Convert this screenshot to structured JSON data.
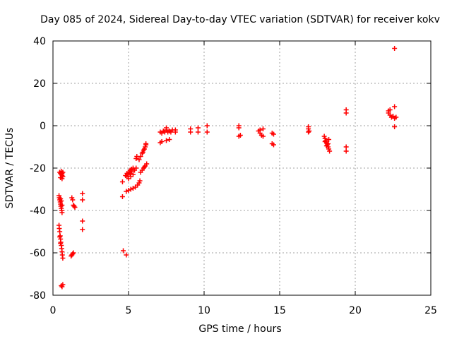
{
  "chart_data": {
    "type": "scatter",
    "title": "Day 085 of 2024, Sidereal Day-to-day VTEC variation (SDTVAR) for receiver kokv",
    "xlabel": "GPS time / hours",
    "ylabel": "SDTVAR / TECUs",
    "xlim": [
      0,
      25
    ],
    "ylim": [
      -80,
      40
    ],
    "xticks": [
      0,
      5,
      10,
      15,
      20,
      25
    ],
    "yticks": [
      -80,
      -60,
      -40,
      -20,
      0,
      20,
      40
    ],
    "xtick_labels": [
      "0",
      "5",
      "10",
      "15",
      "20",
      "25"
    ],
    "ytick_labels": [
      "-80",
      "-60",
      "-40",
      "-20",
      "0",
      "20",
      "40"
    ],
    "grid": true,
    "marker": "+",
    "marker_color": "#ff0000",
    "grid_color": "#a0a0a0",
    "series": [
      {
        "name": "SDTVAR",
        "points": [
          [
            0.45,
            -22.0
          ],
          [
            0.5,
            -22.5
          ],
          [
            0.55,
            -23.0
          ],
          [
            0.6,
            -22.5
          ],
          [
            0.6,
            -23.5
          ],
          [
            0.65,
            -24.0
          ],
          [
            0.5,
            -24.5
          ],
          [
            0.55,
            -21.5
          ],
          [
            0.6,
            -25.0
          ],
          [
            0.65,
            -22.0
          ],
          [
            0.4,
            -33.0
          ],
          [
            0.42,
            -34.0
          ],
          [
            0.45,
            -35.0
          ],
          [
            0.48,
            -36.0
          ],
          [
            0.5,
            -37.0
          ],
          [
            0.52,
            -38.0
          ],
          [
            0.55,
            -39.0
          ],
          [
            0.58,
            -40.0
          ],
          [
            0.6,
            -41.0
          ],
          [
            0.5,
            -34.5
          ],
          [
            0.55,
            -35.5
          ],
          [
            0.6,
            -37.5
          ],
          [
            0.4,
            -47.0
          ],
          [
            0.42,
            -48.5
          ],
          [
            0.45,
            -50.0
          ],
          [
            0.48,
            -52.0
          ],
          [
            0.5,
            -53.5
          ],
          [
            0.52,
            -55.0
          ],
          [
            0.55,
            -56.5
          ],
          [
            0.58,
            -58.0
          ],
          [
            0.6,
            -59.5
          ],
          [
            0.62,
            -61.0
          ],
          [
            0.65,
            -62.5
          ],
          [
            0.45,
            -52.5
          ],
          [
            0.5,
            -55.5
          ],
          [
            0.55,
            -75.5
          ],
          [
            0.6,
            -76.0
          ],
          [
            0.65,
            -75.0
          ],
          [
            1.25,
            -34.0
          ],
          [
            1.3,
            -35.0
          ],
          [
            1.35,
            -37.5
          ],
          [
            1.4,
            -38.0
          ],
          [
            1.45,
            -38.5
          ],
          [
            1.2,
            -61.5
          ],
          [
            1.25,
            -61.0
          ],
          [
            1.3,
            -60.5
          ],
          [
            1.35,
            -60.0
          ],
          [
            1.95,
            -32.0
          ],
          [
            1.95,
            -35.0
          ],
          [
            1.95,
            -45.0
          ],
          [
            1.95,
            -49.0
          ],
          [
            4.6,
            -26.5
          ],
          [
            4.6,
            -33.5
          ],
          [
            4.65,
            -59.0
          ],
          [
            4.85,
            -61.0
          ],
          [
            4.8,
            -23.5
          ],
          [
            4.9,
            -22.5
          ],
          [
            5.0,
            -22.0
          ],
          [
            5.1,
            -21.0
          ],
          [
            5.2,
            -20.5
          ],
          [
            5.3,
            -20.0
          ],
          [
            4.9,
            -24.0
          ],
          [
            5.0,
            -23.0
          ],
          [
            5.1,
            -22.5
          ],
          [
            5.2,
            -21.5
          ],
          [
            5.4,
            -21.0
          ],
          [
            5.5,
            -20.0
          ],
          [
            5.0,
            -25.0
          ],
          [
            5.15,
            -24.0
          ],
          [
            5.3,
            -23.0
          ],
          [
            4.85,
            -31.0
          ],
          [
            5.0,
            -30.5
          ],
          [
            5.15,
            -30.0
          ],
          [
            5.3,
            -29.5
          ],
          [
            5.45,
            -29.0
          ],
          [
            5.6,
            -28.0
          ],
          [
            5.7,
            -27.0
          ],
          [
            5.75,
            -26.0
          ],
          [
            5.5,
            -15.5
          ],
          [
            5.55,
            -14.5
          ],
          [
            5.7,
            -16.0
          ],
          [
            5.8,
            -14.5
          ],
          [
            5.9,
            -13.0
          ],
          [
            6.0,
            -11.5
          ],
          [
            6.1,
            -10.0
          ],
          [
            6.15,
            -9.0
          ],
          [
            5.95,
            -12.5
          ],
          [
            6.05,
            -11.0
          ],
          [
            6.15,
            -8.5
          ],
          [
            5.8,
            -22.0
          ],
          [
            5.9,
            -21.0
          ],
          [
            6.0,
            -20.0
          ],
          [
            6.1,
            -19.0
          ],
          [
            6.2,
            -18.0
          ],
          [
            6.05,
            -19.5
          ],
          [
            7.1,
            -3.0
          ],
          [
            7.2,
            -3.5
          ],
          [
            7.3,
            -2.5
          ],
          [
            7.4,
            -3.0
          ],
          [
            7.5,
            -1.0
          ],
          [
            7.5,
            -2.0
          ],
          [
            7.6,
            -3.0
          ],
          [
            7.7,
            -2.5
          ],
          [
            7.8,
            -3.0
          ],
          [
            7.9,
            -2.0
          ],
          [
            7.1,
            -8.0
          ],
          [
            7.2,
            -7.5
          ],
          [
            7.5,
            -7.0
          ],
          [
            7.7,
            -6.5
          ],
          [
            8.1,
            -2.0
          ],
          [
            8.1,
            -3.0
          ],
          [
            9.1,
            -1.5
          ],
          [
            9.1,
            -3.0
          ],
          [
            9.6,
            -1.0
          ],
          [
            9.6,
            -3.0
          ],
          [
            10.2,
            0.0
          ],
          [
            10.2,
            -3.0
          ],
          [
            12.3,
            0.0
          ],
          [
            12.3,
            -1.0
          ],
          [
            12.4,
            -4.5
          ],
          [
            12.3,
            -5.0
          ],
          [
            13.6,
            -2.5
          ],
          [
            13.7,
            -3.5
          ],
          [
            13.8,
            -4.5
          ],
          [
            13.7,
            -2.0
          ],
          [
            13.9,
            -1.5
          ],
          [
            13.9,
            -5.0
          ],
          [
            14.5,
            -3.5
          ],
          [
            14.6,
            -4.0
          ],
          [
            14.5,
            -8.5
          ],
          [
            14.6,
            -9.0
          ],
          [
            16.9,
            -0.5
          ],
          [
            16.9,
            -1.5
          ],
          [
            16.95,
            -2.5
          ],
          [
            16.9,
            -3.0
          ],
          [
            17.95,
            -5.0
          ],
          [
            18.0,
            -6.0
          ],
          [
            18.05,
            -7.0
          ],
          [
            18.1,
            -8.0
          ],
          [
            18.15,
            -9.0
          ],
          [
            18.2,
            -10.0
          ],
          [
            18.25,
            -11.0
          ],
          [
            18.3,
            -12.0
          ],
          [
            18.0,
            -7.5
          ],
          [
            18.1,
            -9.5
          ],
          [
            18.2,
            -8.5
          ],
          [
            18.25,
            -6.5
          ],
          [
            19.4,
            7.5
          ],
          [
            19.4,
            6.0
          ],
          [
            19.4,
            -10.0
          ],
          [
            19.4,
            -12.0
          ],
          [
            22.2,
            7.0
          ],
          [
            22.2,
            6.0
          ],
          [
            22.3,
            5.0
          ],
          [
            22.4,
            4.0
          ],
          [
            22.3,
            7.5
          ],
          [
            22.5,
            4.5
          ],
          [
            22.6,
            3.5
          ],
          [
            22.7,
            4.0
          ],
          [
            22.6,
            9.0
          ],
          [
            22.6,
            -0.5
          ],
          [
            22.6,
            36.5
          ]
        ]
      }
    ]
  }
}
